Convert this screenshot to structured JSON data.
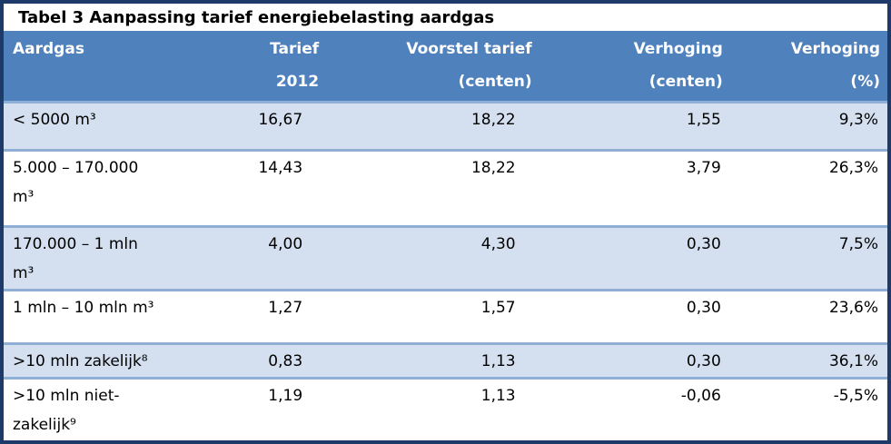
{
  "title": "Tabel 3 Aanpassing tarief energiebelasting aardgas",
  "table": {
    "header": [
      {
        "line1": "Aardgas",
        "line2": ""
      },
      {
        "line1": "Tarief",
        "line2": "2012"
      },
      {
        "line1": "Voorstel tarief",
        "line2": "(centen)"
      },
      {
        "line1": "Verhoging",
        "line2": "(centen)"
      },
      {
        "line1": "Verhoging",
        "line2": "(%)"
      }
    ],
    "rows": [
      {
        "aardgas": [
          "< 5000 m³"
        ],
        "tarief_2012": "16,67",
        "voorstel_tarief": "18,22",
        "verhoging_centen": "1,55",
        "verhoging_pct": "9,3%"
      },
      {
        "aardgas": [
          "5.000 – 170.000",
          "m³"
        ],
        "tarief_2012": "14,43",
        "voorstel_tarief": "18,22",
        "verhoging_centen": "3,79",
        "verhoging_pct": "26,3%"
      },
      {
        "aardgas": [
          "170.000 – 1 mln",
          "m³"
        ],
        "tarief_2012": "4,00",
        "voorstel_tarief": "4,30",
        "verhoging_centen": "0,30",
        "verhoging_pct": "7,5%"
      },
      {
        "aardgas": [
          "1 mln – 10 mln m³"
        ],
        "tarief_2012": "1,27",
        "voorstel_tarief": "1,57",
        "verhoging_centen": "0,30",
        "verhoging_pct": "23,6%"
      },
      {
        "aardgas": [
          ">10 mln zakelijk⁸"
        ],
        "tarief_2012": "0,83",
        "voorstel_tarief": "1,13",
        "verhoging_centen": "0,30",
        "verhoging_pct": "36,1%"
      },
      {
        "aardgas": [
          ">10 mln niet-",
          "zakelijk⁹"
        ],
        "tarief_2012": "1,19",
        "voorstel_tarief": "1,13",
        "verhoging_centen": "-0,06",
        "verhoging_pct": "-5,5%"
      }
    ]
  },
  "colors": {
    "header_bg": "#4f81bd",
    "header_text": "#ffffff",
    "band_bg": "#d4e0f0",
    "separator": "#8fafd7",
    "border": "#1e3a68",
    "body_text": "#000000",
    "title_text": "#000000"
  }
}
